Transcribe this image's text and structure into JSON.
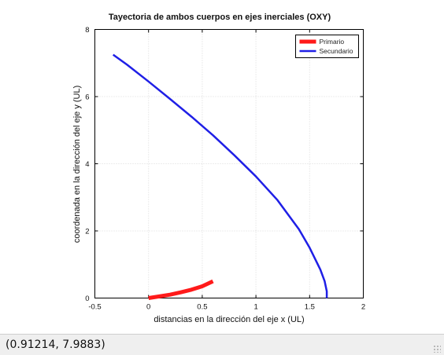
{
  "figure": {
    "title": "Tayectoria de ambos cuerpos en ejes inerciales (OXY)",
    "xlabel": "distancias en la dirección del eje x (UL)",
    "ylabel": "coordenada en la dirección del eje y (UL)"
  },
  "status": {
    "coords": "(0.91214, 7.9883)"
  },
  "chart_data": {
    "type": "line",
    "title": "Tayectoria de ambos cuerpos en ejes inerciales (OXY)",
    "xlabel": "distancias en la dirección del eje x (UL)",
    "ylabel": "coordenada en la dirección del eje y (UL)",
    "xlim": [
      -0.5,
      2
    ],
    "ylim": [
      0,
      8
    ],
    "xticks": [
      -0.5,
      0,
      0.5,
      1,
      1.5,
      2
    ],
    "xtick_labels": [
      "-0.5",
      "0",
      "0.5",
      "1",
      "1.5",
      "2"
    ],
    "yticks": [
      0,
      2,
      4,
      6,
      8
    ],
    "ytick_labels": [
      "0",
      "2",
      "4",
      "6",
      "8"
    ],
    "grid": true,
    "legend": "top-right",
    "series": [
      {
        "name": "Primario",
        "color": "#ff1a1a",
        "x": [
          0.0,
          0.1,
          0.2,
          0.3,
          0.4,
          0.5,
          0.6
        ],
        "y": [
          0.0,
          0.05,
          0.1,
          0.17,
          0.25,
          0.35,
          0.5
        ]
      },
      {
        "name": "Secundario",
        "color": "#1f1fe6",
        "x": [
          -0.33,
          -0.2,
          0.0,
          0.2,
          0.4,
          0.6,
          0.8,
          1.0,
          1.2,
          1.4,
          1.5,
          1.6,
          1.64,
          1.66,
          1.66
        ],
        "y": [
          7.25,
          6.95,
          6.45,
          5.93,
          5.4,
          4.85,
          4.25,
          3.62,
          2.92,
          2.05,
          1.5,
          0.85,
          0.5,
          0.2,
          0.0
        ]
      }
    ]
  }
}
